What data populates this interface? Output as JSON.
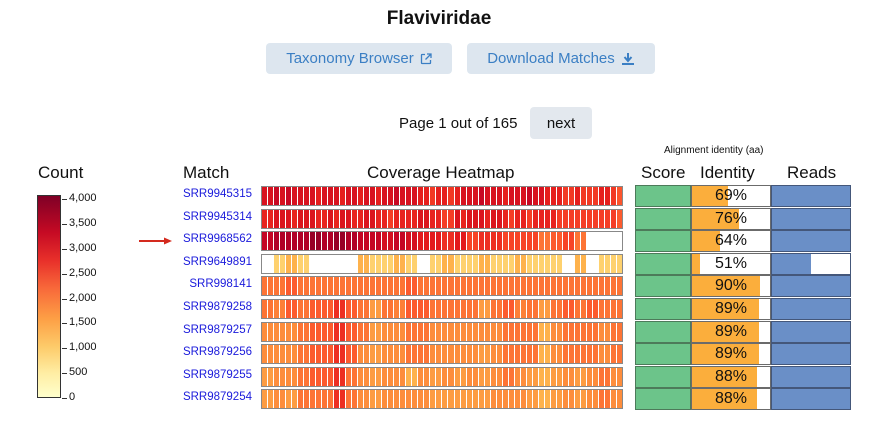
{
  "page_title": "Flaviviridae",
  "buttons": {
    "taxonomy": "Taxonomy Browser",
    "taxonomy_icon": "external-link-icon",
    "download": "Download Matches",
    "download_icon": "download-icon"
  },
  "pagination": {
    "text": "Page 1 out of 165",
    "next_label": "next"
  },
  "headers": {
    "count": "Count",
    "match": "Match",
    "coverage": "Coverage Heatmap",
    "alignment_group": "Alignment identity (aa)",
    "score": "Score",
    "identity": "Identity",
    "reads": "Reads"
  },
  "legend": {
    "labels": [
      "4,000",
      "3,500",
      "3,000",
      "2,500",
      "2,000",
      "1,500",
      "1,000",
      "500",
      "0"
    ],
    "values": [
      4000,
      3500,
      3000,
      2500,
      2000,
      1500,
      1000,
      500,
      0
    ]
  },
  "colors": {
    "score": "#6cc48a",
    "identity": "#fbae3c",
    "reads": "#6a8fc7",
    "link": "#1a1adb",
    "arrow": "#d42a1e",
    "button_bg": "#dde6ef",
    "button_text": "#3b7fc4"
  },
  "highlighted_row": 2,
  "rows": [
    {
      "id": "SRR9945315",
      "identity_label": "69%",
      "identity": 0.69,
      "reads": 1.0,
      "coverage": [
        3150,
        3150,
        3350,
        3150,
        3350,
        3150,
        3150,
        3150,
        3150,
        2950,
        3150,
        3150,
        3150,
        2950,
        3150,
        3150,
        2950,
        3150,
        3150,
        2950,
        3150,
        3150,
        3350,
        3150,
        3150,
        3150,
        2950,
        2950,
        2700,
        2950,
        2950,
        2700,
        2950,
        3150,
        3150,
        3150,
        3350,
        3150,
        3150,
        3150,
        2950,
        3150,
        3150,
        3150,
        3350,
        3150,
        3150,
        2950,
        2950,
        2950,
        2700,
        2700,
        2950,
        2700,
        2700,
        2700,
        2950,
        2950,
        2700,
        2450
      ]
    },
    {
      "id": "SRR9945314",
      "identity_label": "76%",
      "identity": 0.76,
      "reads": 1.0,
      "coverage": [
        2900,
        2900,
        3100,
        3100,
        3100,
        2900,
        3100,
        3100,
        3100,
        2900,
        2900,
        3100,
        2900,
        3100,
        3100,
        2900,
        2900,
        3100,
        3100,
        2900,
        2900,
        2650,
        2900,
        2900,
        2900,
        2900,
        3100,
        3100,
        2900,
        2900,
        2650,
        2650,
        3100,
        2900,
        3100,
        3100,
        3100,
        2900,
        3100,
        3100,
        2900,
        2650,
        2900,
        2900,
        2650,
        2900,
        2900,
        2900,
        2900,
        2650,
        2650,
        2650,
        2650,
        2650,
        2650,
        2650,
        2650,
        2650,
        2650,
        2400
      ]
    },
    {
      "id": "SRR9968562",
      "identity_label": "64%",
      "identity": 0.64,
      "reads": 1.0,
      "coverage": [
        3400,
        3400,
        3600,
        3600,
        3600,
        3600,
        3600,
        3600,
        3800,
        3800,
        3600,
        3600,
        3800,
        3800,
        3600,
        3600,
        3400,
        3400,
        3400,
        3400,
        3200,
        3200,
        3400,
        3400,
        3200,
        3200,
        3000,
        3000,
        3000,
        3000,
        2800,
        2800,
        3000,
        3000,
        2600,
        2600,
        2800,
        2800,
        2800,
        2800,
        2600,
        2600,
        2600,
        2600,
        2600,
        2600,
        2200,
        2200,
        2400,
        2400,
        2600,
        2600,
        2200,
        2200,
        0,
        0,
        0,
        0,
        0,
        0
      ]
    },
    {
      "id": "SRR9649891",
      "identity_label": "51%",
      "identity": 0.51,
      "reads": 0.5,
      "coverage": [
        0,
        0,
        1100,
        1100,
        1500,
        1500,
        1100,
        1100,
        0,
        0,
        0,
        0,
        0,
        0,
        0,
        0,
        1500,
        1500,
        1100,
        1100,
        1100,
        1100,
        1500,
        1500,
        1100,
        1100,
        0,
        0,
        1100,
        1100,
        1500,
        1500,
        1100,
        1100,
        1100,
        1100,
        1500,
        1500,
        1100,
        1100,
        1100,
        1100,
        1500,
        1500,
        1100,
        1100,
        1100,
        1100,
        1100,
        1100,
        0,
        0,
        1500,
        1500,
        0,
        0,
        1100,
        1100,
        1100,
        1100
      ]
    },
    {
      "id": "SRR998141",
      "identity_label": "90%",
      "identity": 0.9,
      "reads": 1.0,
      "coverage": [
        2200,
        2200,
        2200,
        2200,
        2400,
        2400,
        2200,
        2200,
        2200,
        2200,
        2200,
        2200,
        2200,
        2200,
        2200,
        2200,
        2200,
        2200,
        2200,
        2200,
        2200,
        2200,
        2200,
        2200,
        2400,
        2400,
        2200,
        2200,
        2200,
        2200,
        2200,
        2200,
        2200,
        2200,
        2200,
        2200,
        2200,
        2200,
        2200,
        2200,
        2200,
        2200,
        2200,
        2200,
        2200,
        2200,
        2200,
        2200,
        2200,
        2200,
        2200,
        2200,
        2200,
        2200,
        2200,
        2200,
        2200,
        2200,
        2200,
        2200
      ]
    },
    {
      "id": "SRR9879258",
      "identity_label": "89%",
      "identity": 0.89,
      "reads": 1.0,
      "coverage": [
        2200,
        2200,
        2100,
        2100,
        2400,
        2400,
        2200,
        2200,
        2400,
        2400,
        2400,
        2400,
        2800,
        2800,
        2400,
        2400,
        2200,
        2200,
        1800,
        1800,
        2200,
        2200,
        2100,
        2100,
        2400,
        2400,
        2400,
        2400,
        2200,
        2200,
        2200,
        2200,
        2200,
        2200,
        2200,
        2200,
        1800,
        1800,
        2200,
        2200,
        2400,
        2400,
        2100,
        2100,
        2200,
        2200,
        1800,
        1800,
        2200,
        2200,
        2400,
        2400,
        2200,
        2200,
        2400,
        2400,
        2200,
        2200,
        2200,
        2200
      ]
    },
    {
      "id": "SRR9879257",
      "identity_label": "89%",
      "identity": 0.89,
      "reads": 1.0,
      "coverage": [
        2000,
        2000,
        2000,
        2000,
        2000,
        2000,
        2200,
        2200,
        2400,
        2400,
        2400,
        2400,
        2800,
        2800,
        2400,
        2400,
        2200,
        2200,
        1800,
        1800,
        2000,
        2000,
        2000,
        2000,
        2200,
        2200,
        2200,
        2200,
        2000,
        2000,
        2000,
        2000,
        2000,
        2000,
        2000,
        2000,
        2000,
        2000,
        2000,
        2000,
        2200,
        2200,
        2200,
        2200,
        2200,
        2200,
        1500,
        1500,
        2000,
        2000,
        2200,
        2200,
        2200,
        2200,
        2200,
        2200,
        2000,
        2000,
        2200,
        2200
      ]
    },
    {
      "id": "SRR9879256",
      "identity_label": "89%",
      "identity": 0.89,
      "reads": 1.0,
      "coverage": [
        2000,
        2000,
        2000,
        2000,
        2000,
        2000,
        2200,
        2200,
        2400,
        2400,
        2400,
        2400,
        2800,
        2800,
        2400,
        2400,
        2000,
        2000,
        1800,
        1800,
        2000,
        2000,
        2000,
        2000,
        2200,
        2200,
        2200,
        2200,
        2000,
        2000,
        2000,
        2000,
        2000,
        2000,
        2000,
        2000,
        1800,
        1800,
        2000,
        2000,
        2200,
        2200,
        2200,
        2200,
        2200,
        2200,
        1500,
        1500,
        2000,
        2000,
        2200,
        2200,
        2200,
        2200,
        2200,
        2200,
        2000,
        2000,
        2200,
        2200
      ]
    },
    {
      "id": "SRR9879255",
      "identity_label": "88%",
      "identity": 0.88,
      "reads": 1.0,
      "coverage": [
        1800,
        1800,
        2000,
        2000,
        2000,
        2000,
        2200,
        2200,
        2400,
        2400,
        2400,
        2400,
        2800,
        2800,
        2200,
        2200,
        2000,
        2000,
        1800,
        1800,
        2000,
        2000,
        2000,
        2000,
        1500,
        1500,
        2000,
        2000,
        1800,
        1800,
        2000,
        2000,
        1800,
        1800,
        2000,
        2000,
        1800,
        1800,
        2000,
        2000,
        2200,
        2200,
        2000,
        2000,
        1800,
        1800,
        1500,
        1500,
        1800,
        1800,
        2000,
        2000,
        1800,
        1800,
        2000,
        2000,
        2200,
        2200,
        2000,
        2000
      ]
    },
    {
      "id": "SRR9879254",
      "identity_label": "88%",
      "identity": 0.88,
      "reads": 1.0,
      "coverage": [
        1800,
        1800,
        2000,
        2000,
        1800,
        1800,
        2200,
        2200,
        2200,
        2200,
        2200,
        2200,
        2800,
        2800,
        2200,
        2200,
        2000,
        2000,
        1800,
        1800,
        2000,
        2000,
        2000,
        2000,
        2000,
        2000,
        2000,
        2000,
        1800,
        1800,
        1800,
        1800,
        1800,
        1800,
        1800,
        1800,
        1800,
        1800,
        2000,
        2000,
        2000,
        2000,
        2000,
        2000,
        1800,
        1800,
        1500,
        1500,
        1800,
        1800,
        2000,
        2000,
        1800,
        1800,
        2000,
        2000,
        2200,
        2200,
        2000,
        2000
      ]
    }
  ]
}
